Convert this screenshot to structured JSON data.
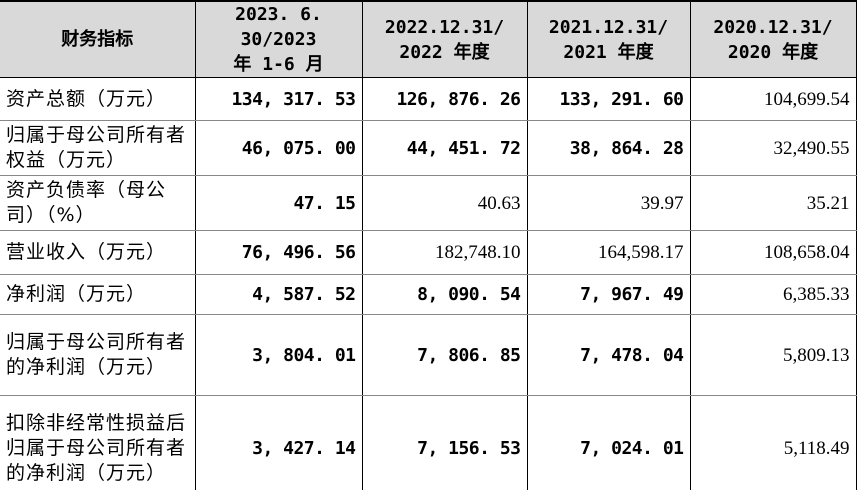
{
  "table": {
    "header": [
      "财务指标",
      "2023. 6. 30/2023\n年 1-6 月",
      "2022.12.31/\n2022 年度",
      "2021.12.31/\n2021 年度",
      "2020.12.31/\n2020 年度"
    ],
    "rows": [
      {
        "cells": [
          "资产总额（万元）",
          "134, 317. 53",
          "126, 876. 26",
          "133, 291. 60",
          "104,699.54"
        ],
        "bold": [
          true,
          true,
          true,
          false
        ]
      },
      {
        "cells": [
          "归属于母公司所有者权益（万元）",
          "46, 075. 00",
          "44, 451. 72",
          "38, 864. 28",
          "32,490.55"
        ],
        "bold": [
          true,
          true,
          true,
          false
        ]
      },
      {
        "cells": [
          "资产负债率（母公司）（%）",
          "47. 15",
          "40.63",
          "39.97",
          "35.21"
        ],
        "bold": [
          true,
          false,
          false,
          false
        ]
      },
      {
        "cells": [
          "营业收入（万元）",
          "76, 496. 56",
          "182,748.10",
          "164,598.17",
          "108,658.04"
        ],
        "bold": [
          true,
          false,
          false,
          false
        ]
      },
      {
        "cells": [
          "净利润（万元）",
          "4, 587. 52",
          "8, 090. 54",
          "7, 967. 49",
          "6,385.33"
        ],
        "bold": [
          true,
          true,
          true,
          false
        ]
      },
      {
        "cells": [
          "归属于母公司所有者的净利润（万元）",
          "3, 804. 01",
          "7, 806. 85",
          "7, 478. 04",
          "5,809.13"
        ],
        "bold": [
          true,
          true,
          true,
          false
        ]
      },
      {
        "cells": [
          "扣除非经常性损益后归属于母公司所有者的净利润（万元）",
          "3, 427. 14",
          "7, 156. 53",
          "7, 024. 01",
          "5,118.49"
        ],
        "bold": [
          true,
          true,
          true,
          false
        ]
      }
    ]
  }
}
